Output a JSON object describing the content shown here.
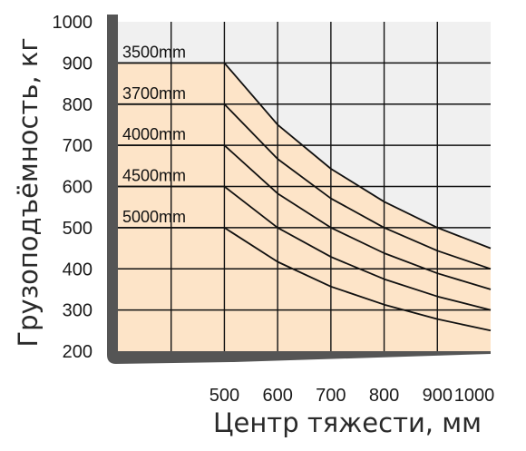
{
  "chart_data": {
    "type": "line",
    "title": "",
    "xlabel": "Центр тяжести, мм",
    "ylabel": "Грузоподъёмность, кг",
    "xlim": [
      300,
      1000
    ],
    "ylim": [
      200,
      1000
    ],
    "x_ticks": [
      "500",
      "600",
      "700",
      "800",
      "900",
      "1000"
    ],
    "y_ticks": [
      "200",
      "300",
      "400",
      "500",
      "600",
      "700",
      "800",
      "900",
      "1000"
    ],
    "grid": true,
    "series": [
      {
        "name": "3500mm",
        "x": [
          300,
          500,
          600,
          700,
          800,
          900,
          1000
        ],
        "y": [
          900,
          900,
          750,
          643,
          563,
          500,
          450
        ]
      },
      {
        "name": "3700mm",
        "x": [
          300,
          500,
          600,
          700,
          800,
          900,
          1000
        ],
        "y": [
          800,
          800,
          667,
          571,
          500,
          444,
          400
        ]
      },
      {
        "name": "4000mm",
        "x": [
          300,
          500,
          600,
          700,
          800,
          900,
          1000
        ],
        "y": [
          700,
          700,
          583,
          500,
          438,
          389,
          350
        ]
      },
      {
        "name": "4500mm",
        "x": [
          300,
          500,
          600,
          700,
          800,
          900,
          1000
        ],
        "y": [
          600,
          600,
          500,
          429,
          375,
          333,
          300
        ]
      },
      {
        "name": "5000mm",
        "x": [
          300,
          500,
          600,
          700,
          800,
          900,
          1000
        ],
        "y": [
          500,
          500,
          417,
          357,
          313,
          278,
          250
        ]
      }
    ],
    "colors": {
      "fill_region": "#fde4c8",
      "background_region": "#f0f0f0",
      "grid": "#111111",
      "frame": "#555555",
      "curves": "#111111"
    }
  }
}
